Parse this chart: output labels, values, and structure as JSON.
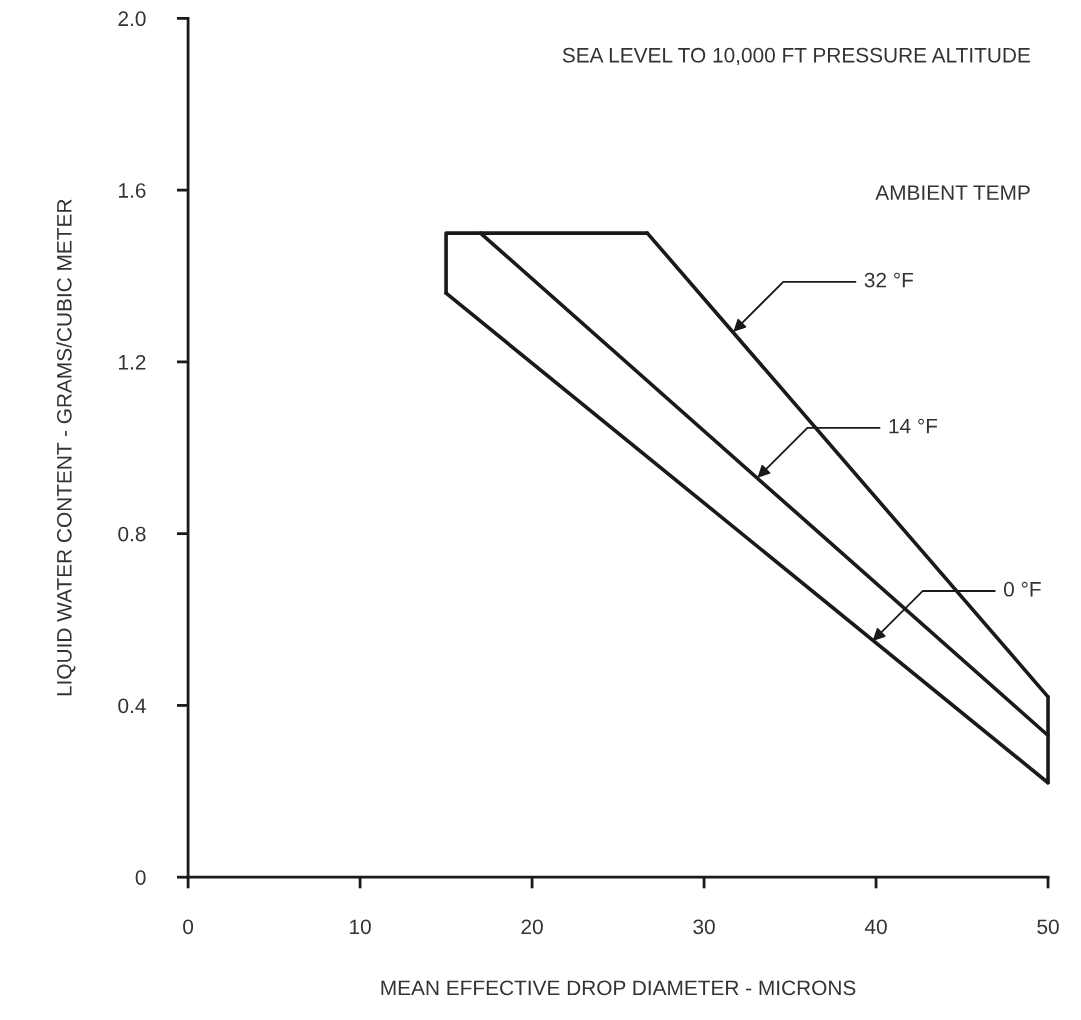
{
  "chart_data": {
    "type": "line",
    "xlabel": "MEAN EFFECTIVE DROP DIAMETER - MICRONS",
    "ylabel": "LIQUID WATER CONTENT - GRAMS/CUBIC METER",
    "xlim": [
      0,
      50
    ],
    "xticks": [
      0,
      10,
      20,
      30,
      40,
      50
    ],
    "ylim": [
      0,
      2.0
    ],
    "yticks": [
      0,
      {
        "value": 0.4,
        "label": "0.4"
      },
      {
        "value": 0.8,
        "label": "0.8"
      },
      {
        "value": 1.2,
        "label": "1.2"
      },
      {
        "value": 1.6,
        "label": "1.6"
      },
      {
        "value": 2.0,
        "label": "2.0"
      }
    ],
    "grid": false,
    "legend": false,
    "marker": "none",
    "line_style": "solid",
    "series": [
      {
        "color": "#1a1a1a",
        "x": [
          26.7,
          50
        ],
        "values": [
          1.5,
          0.42
        ]
      },
      {
        "color": "#1a1a1a",
        "x": [
          17.0,
          50
        ],
        "values": [
          1.5,
          0.33
        ]
      },
      {
        "color": "#1a1a1a",
        "x": [
          15.0,
          50
        ],
        "values": [
          1.36,
          0.22
        ]
      },
      {
        "color": "#1a1a1a",
        "x": [
          15.0,
          15.0,
          26.7
        ],
        "values": [
          1.36,
          1.5,
          1.5
        ]
      },
      {
        "color": "#1a1a1a",
        "x": [
          50,
          50
        ],
        "values": [
          0.22,
          0.42
        ]
      }
    ],
    "annotations": [
      "SEA LEVEL TO 10,000 FT PRESSURE ALTITUDE",
      "AMBIENT TEMP",
      {
        "text": "32 °F",
        "x": 31.7,
        "y": 1.27
      },
      {
        "text": "14 °F",
        "x": 33.1,
        "y": 0.93
      },
      {
        "text": "0 °F",
        "x": 39.8,
        "y": 0.55
      }
    ]
  }
}
